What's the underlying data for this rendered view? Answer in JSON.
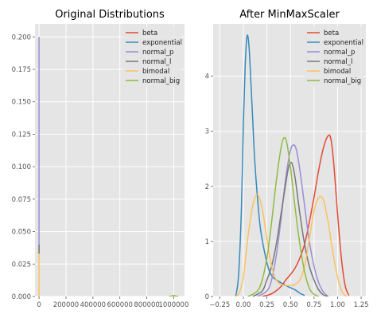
{
  "chart_data": [
    {
      "type": "line",
      "title": "Original Distributions",
      "xlim": [
        -30000,
        1080000
      ],
      "ylim": [
        0,
        0.21
      ],
      "xticks": [
        0,
        200000,
        400000,
        600000,
        800000,
        1000000
      ],
      "xtick_labels": [
        "0",
        "200000",
        "400000",
        "600000",
        "800000",
        "1000000"
      ],
      "yticks": [
        0,
        0.025,
        0.05,
        0.075,
        0.1,
        0.125,
        0.15,
        0.175,
        0.2
      ],
      "ytick_labels": [
        "0.000",
        "0.025",
        "0.050",
        "0.075",
        "0.100",
        "0.125",
        "0.150",
        "0.175",
        "0.200"
      ],
      "grid": true,
      "legend_position": "top-right",
      "series": [
        {
          "name": "beta",
          "color": "#E24A33",
          "x": [
            0,
            0
          ],
          "y": [
            0,
            0.0
          ]
        },
        {
          "name": "exponential",
          "color": "#348ABD",
          "x": [
            0,
            0
          ],
          "y": [
            0,
            0.0
          ]
        },
        {
          "name": "normal_p",
          "color": "#988ED5",
          "x": [
            0,
            0
          ],
          "y": [
            0.033,
            0.2
          ]
        },
        {
          "name": "normal_l",
          "color": "#777777",
          "x": [
            0,
            0
          ],
          "y": [
            0.033,
            0.04
          ]
        },
        {
          "name": "bimodal",
          "color": "#FBC15E",
          "x": [
            0,
            0
          ],
          "y": [
            0,
            0.033
          ]
        },
        {
          "name": "normal_big",
          "color": "#8EBA42",
          "x": [
            965000,
            985000,
            1000000,
            1015000,
            1035000
          ],
          "y": [
            0,
            0.0003,
            0.0008,
            0.0003,
            0
          ]
        }
      ]
    },
    {
      "type": "line",
      "title": "After MinMaxScaler",
      "xlim": [
        -0.32,
        1.3
      ],
      "ylim": [
        0,
        4.95
      ],
      "xticks": [
        -0.25,
        0,
        0.25,
        0.5,
        0.75,
        1,
        1.25
      ],
      "xtick_labels": [
        "−0.25",
        "0.00",
        "0.25",
        "0.50",
        "0.75",
        "1.00",
        "1.25"
      ],
      "yticks": [
        0,
        1,
        2,
        3,
        4
      ],
      "ytick_labels": [
        "0",
        "1",
        "2",
        "3",
        "4"
      ],
      "grid": true,
      "legend_position": "top-right",
      "series": [
        {
          "name": "beta",
          "color": "#E24A33",
          "x": [
            0.2,
            0.3,
            0.4,
            0.45,
            0.5,
            0.55,
            0.6,
            0.65,
            0.7,
            0.75,
            0.8,
            0.85,
            0.9,
            0.93,
            0.96,
            1.0,
            1.04,
            1.08,
            1.12
          ],
          "y": [
            0,
            0.05,
            0.18,
            0.3,
            0.4,
            0.52,
            0.7,
            0.95,
            1.35,
            1.8,
            2.3,
            2.7,
            2.92,
            2.85,
            2.4,
            1.5,
            0.7,
            0.2,
            0.02
          ]
        },
        {
          "name": "exponential",
          "color": "#348ABD",
          "x": [
            -0.08,
            -0.05,
            -0.02,
            0.0,
            0.02,
            0.04,
            0.06,
            0.08,
            0.1,
            0.12,
            0.15,
            0.18,
            0.22,
            0.26,
            0.3,
            0.35,
            0.4,
            0.45,
            0.5,
            0.55,
            0.6,
            0.65
          ],
          "y": [
            0.0,
            0.4,
            1.6,
            3.1,
            4.2,
            4.73,
            4.55,
            3.9,
            3.2,
            2.5,
            1.8,
            1.25,
            0.85,
            0.55,
            0.38,
            0.3,
            0.25,
            0.2,
            0.16,
            0.12,
            0.06,
            0.02
          ]
        },
        {
          "name": "normal_p",
          "color": "#988ED5",
          "x": [
            0.15,
            0.25,
            0.3,
            0.35,
            0.4,
            0.45,
            0.5,
            0.53,
            0.56,
            0.6,
            0.65,
            0.7,
            0.75,
            0.8,
            0.85,
            0.9
          ],
          "y": [
            0,
            0.1,
            0.3,
            0.75,
            1.4,
            2.15,
            2.65,
            2.75,
            2.68,
            2.3,
            1.65,
            1.0,
            0.55,
            0.25,
            0.08,
            0
          ]
        },
        {
          "name": "normal_l",
          "color": "#777777",
          "x": [
            0.1,
            0.2,
            0.25,
            0.3,
            0.35,
            0.4,
            0.45,
            0.48,
            0.5,
            0.52,
            0.55,
            0.6,
            0.65,
            0.7,
            0.75,
            0.8,
            0.85,
            0.9
          ],
          "y": [
            0,
            0.1,
            0.3,
            0.55,
            0.95,
            1.5,
            2.05,
            2.35,
            2.43,
            2.4,
            2.15,
            1.5,
            0.95,
            0.55,
            0.3,
            0.12,
            0.03,
            0
          ]
        },
        {
          "name": "bimodal",
          "color": "#FBC15E",
          "x": [
            -0.08,
            -0.04,
            0.0,
            0.05,
            0.1,
            0.15,
            0.2,
            0.25,
            0.3,
            0.35,
            0.4,
            0.45,
            0.5,
            0.55,
            0.6,
            0.65,
            0.7,
            0.75,
            0.8,
            0.85,
            0.9,
            0.95,
            1.0,
            1.05,
            1.1
          ],
          "y": [
            0,
            0.08,
            0.35,
            1.1,
            1.65,
            1.85,
            1.6,
            1.05,
            0.55,
            0.3,
            0.22,
            0.2,
            0.2,
            0.22,
            0.3,
            0.55,
            1.05,
            1.55,
            1.8,
            1.75,
            1.35,
            0.8,
            0.35,
            0.08,
            0
          ]
        },
        {
          "name": "normal_big",
          "color": "#8EBA42",
          "x": [
            0.05,
            0.15,
            0.2,
            0.25,
            0.3,
            0.35,
            0.4,
            0.43,
            0.46,
            0.5,
            0.55,
            0.6,
            0.65,
            0.7,
            0.75,
            0.8
          ],
          "y": [
            0,
            0.1,
            0.3,
            0.7,
            1.35,
            2.1,
            2.7,
            2.88,
            2.8,
            2.35,
            1.6,
            0.95,
            0.45,
            0.15,
            0.04,
            0
          ]
        }
      ]
    }
  ]
}
